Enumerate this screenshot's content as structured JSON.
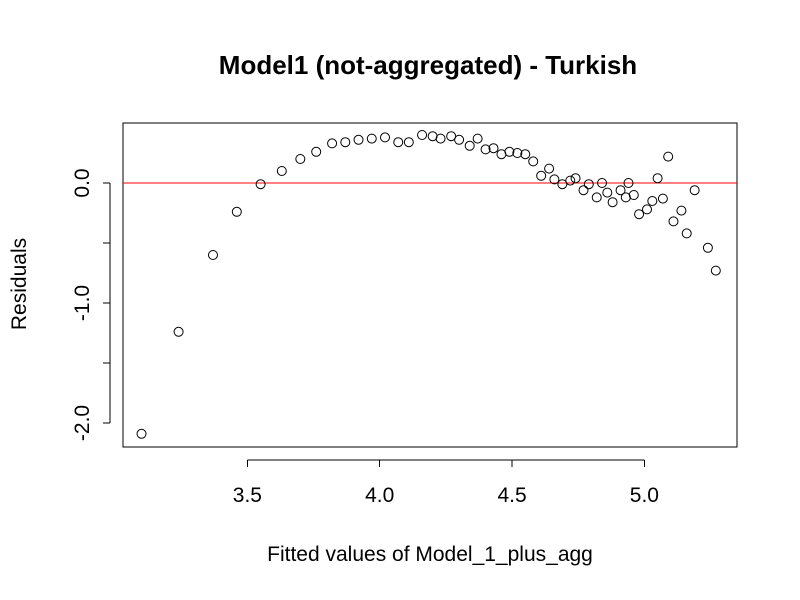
{
  "chart_data": {
    "type": "scatter",
    "title": "Model1 (not-aggregated) - Turkish",
    "xlabel": "Fitted values of Model_1_plus_agg",
    "ylabel": "Residuals",
    "xlim": [
      3.03,
      5.35
    ],
    "ylim": [
      -2.2,
      0.5
    ],
    "x_ticks": [
      3.5,
      4.0,
      4.5,
      5.0
    ],
    "x_tick_labels": [
      "3.5",
      "4.0",
      "4.5",
      "5.0"
    ],
    "y_ticks": [
      -2.0,
      -1.5,
      -1.0,
      -0.5,
      0.0
    ],
    "y_tick_labels": [
      "-2.0",
      "",
      "-1.0",
      "",
      "0.0"
    ],
    "grid": false,
    "legend": "none",
    "reference_line": {
      "y": 0.0,
      "color": "#ff0000"
    },
    "colors": {
      "points": "#000000",
      "reference": "#ff0000",
      "background": "#ffffff"
    },
    "points": [
      {
        "x": 3.1,
        "y": -2.09
      },
      {
        "x": 3.24,
        "y": -1.24
      },
      {
        "x": 3.37,
        "y": -0.6
      },
      {
        "x": 3.46,
        "y": -0.24
      },
      {
        "x": 3.55,
        "y": -0.01
      },
      {
        "x": 3.63,
        "y": 0.1
      },
      {
        "x": 3.7,
        "y": 0.2
      },
      {
        "x": 3.76,
        "y": 0.26
      },
      {
        "x": 3.82,
        "y": 0.33
      },
      {
        "x": 3.87,
        "y": 0.34
      },
      {
        "x": 3.92,
        "y": 0.36
      },
      {
        "x": 3.97,
        "y": 0.37
      },
      {
        "x": 4.02,
        "y": 0.38
      },
      {
        "x": 4.07,
        "y": 0.34
      },
      {
        "x": 4.11,
        "y": 0.34
      },
      {
        "x": 4.16,
        "y": 0.4
      },
      {
        "x": 4.2,
        "y": 0.39
      },
      {
        "x": 4.23,
        "y": 0.37
      },
      {
        "x": 4.27,
        "y": 0.39
      },
      {
        "x": 4.3,
        "y": 0.36
      },
      {
        "x": 4.34,
        "y": 0.31
      },
      {
        "x": 4.37,
        "y": 0.37
      },
      {
        "x": 4.4,
        "y": 0.28
      },
      {
        "x": 4.43,
        "y": 0.29
      },
      {
        "x": 4.46,
        "y": 0.24
      },
      {
        "x": 4.49,
        "y": 0.26
      },
      {
        "x": 4.52,
        "y": 0.25
      },
      {
        "x": 4.55,
        "y": 0.24
      },
      {
        "x": 4.58,
        "y": 0.18
      },
      {
        "x": 4.61,
        "y": 0.06
      },
      {
        "x": 4.64,
        "y": 0.12
      },
      {
        "x": 4.66,
        "y": 0.03
      },
      {
        "x": 4.69,
        "y": -0.01
      },
      {
        "x": 4.72,
        "y": 0.02
      },
      {
        "x": 4.74,
        "y": 0.04
      },
      {
        "x": 4.77,
        "y": -0.06
      },
      {
        "x": 4.79,
        "y": -0.01
      },
      {
        "x": 4.82,
        "y": -0.12
      },
      {
        "x": 4.84,
        "y": 0.0
      },
      {
        "x": 4.86,
        "y": -0.08
      },
      {
        "x": 4.88,
        "y": -0.16
      },
      {
        "x": 4.91,
        "y": -0.06
      },
      {
        "x": 4.93,
        "y": -0.12
      },
      {
        "x": 4.94,
        "y": 0.0
      },
      {
        "x": 4.96,
        "y": -0.1
      },
      {
        "x": 4.98,
        "y": -0.26
      },
      {
        "x": 5.01,
        "y": -0.22
      },
      {
        "x": 5.03,
        "y": -0.15
      },
      {
        "x": 5.05,
        "y": 0.04
      },
      {
        "x": 5.07,
        "y": -0.13
      },
      {
        "x": 5.09,
        "y": 0.22
      },
      {
        "x": 5.11,
        "y": -0.32
      },
      {
        "x": 5.14,
        "y": -0.23
      },
      {
        "x": 5.16,
        "y": -0.42
      },
      {
        "x": 5.19,
        "y": -0.06
      },
      {
        "x": 5.24,
        "y": -0.54
      },
      {
        "x": 5.27,
        "y": -0.73
      }
    ]
  }
}
